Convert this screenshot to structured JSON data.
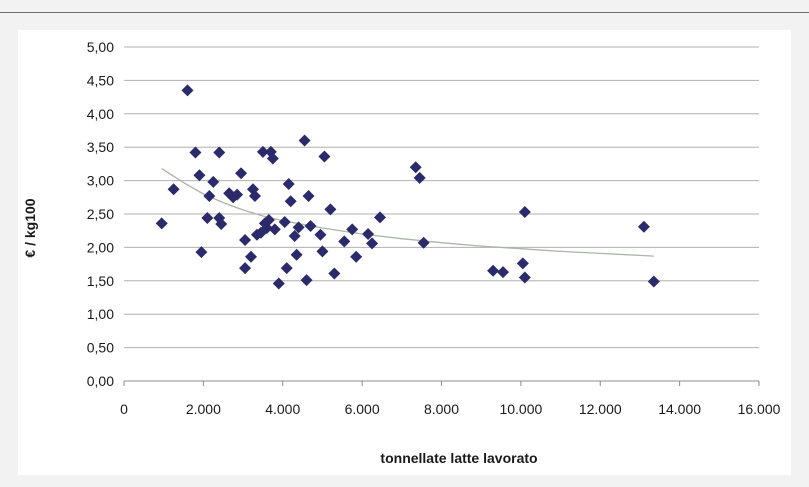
{
  "chart_data": {
    "type": "scatter",
    "title": "",
    "xlabel": "tonnellate latte lavorato",
    "ylabel": "€ / kg100",
    "xlim": [
      0,
      16000
    ],
    "ylim": [
      0,
      5
    ],
    "x_ticks": [
      0,
      2000,
      4000,
      6000,
      8000,
      10000,
      12000,
      14000,
      16000
    ],
    "x_tick_labels": [
      "0",
      "2.000",
      "4.000",
      "6.000",
      "8.000",
      "10.000",
      "12.000",
      "14.000",
      "16.000"
    ],
    "y_ticks": [
      0,
      0.5,
      1,
      1.5,
      2,
      2.5,
      3,
      3.5,
      4,
      4.5,
      5
    ],
    "y_tick_labels": [
      "0,00",
      "0,50",
      "1,00",
      "1,50",
      "2,00",
      "2,50",
      "3,00",
      "3,50",
      "4,00",
      "4,50",
      "5,00"
    ],
    "grid": "horizontal",
    "legend": "none",
    "marker": "diamond",
    "marker_color": "#2b2b6b",
    "trendline_color": "#a8b5a8",
    "points": [
      {
        "x": 950,
        "y": 2.36
      },
      {
        "x": 1250,
        "y": 2.87
      },
      {
        "x": 1600,
        "y": 4.35
      },
      {
        "x": 1800,
        "y": 3.42
      },
      {
        "x": 1900,
        "y": 3.08
      },
      {
        "x": 1950,
        "y": 1.93
      },
      {
        "x": 2100,
        "y": 2.44
      },
      {
        "x": 2150,
        "y": 2.77
      },
      {
        "x": 2250,
        "y": 2.98
      },
      {
        "x": 2400,
        "y": 2.44
      },
      {
        "x": 2400,
        "y": 3.42
      },
      {
        "x": 2450,
        "y": 2.35
      },
      {
        "x": 2650,
        "y": 2.81
      },
      {
        "x": 2750,
        "y": 2.75
      },
      {
        "x": 2850,
        "y": 2.79
      },
      {
        "x": 2950,
        "y": 3.11
      },
      {
        "x": 3050,
        "y": 2.11
      },
      {
        "x": 3050,
        "y": 1.69
      },
      {
        "x": 3200,
        "y": 1.86
      },
      {
        "x": 3250,
        "y": 2.87
      },
      {
        "x": 3300,
        "y": 2.77
      },
      {
        "x": 3350,
        "y": 2.19
      },
      {
        "x": 3450,
        "y": 2.22
      },
      {
        "x": 3500,
        "y": 3.43
      },
      {
        "x": 3550,
        "y": 2.36
      },
      {
        "x": 3600,
        "y": 2.29
      },
      {
        "x": 3650,
        "y": 2.41
      },
      {
        "x": 3700,
        "y": 3.43
      },
      {
        "x": 3750,
        "y": 3.33
      },
      {
        "x": 3800,
        "y": 2.27
      },
      {
        "x": 3900,
        "y": 1.46
      },
      {
        "x": 4050,
        "y": 2.38
      },
      {
        "x": 4100,
        "y": 1.69
      },
      {
        "x": 4150,
        "y": 2.95
      },
      {
        "x": 4200,
        "y": 2.69
      },
      {
        "x": 4300,
        "y": 2.17
      },
      {
        "x": 4350,
        "y": 1.89
      },
      {
        "x": 4400,
        "y": 2.3
      },
      {
        "x": 4550,
        "y": 3.6
      },
      {
        "x": 4600,
        "y": 1.51
      },
      {
        "x": 4650,
        "y": 2.77
      },
      {
        "x": 4700,
        "y": 2.32
      },
      {
        "x": 4950,
        "y": 2.19
      },
      {
        "x": 5000,
        "y": 1.94
      },
      {
        "x": 5050,
        "y": 3.36
      },
      {
        "x": 5200,
        "y": 2.57
      },
      {
        "x": 5300,
        "y": 1.61
      },
      {
        "x": 5550,
        "y": 2.09
      },
      {
        "x": 5750,
        "y": 2.27
      },
      {
        "x": 5850,
        "y": 1.86
      },
      {
        "x": 6150,
        "y": 2.2
      },
      {
        "x": 6250,
        "y": 2.06
      },
      {
        "x": 6450,
        "y": 2.45
      },
      {
        "x": 7350,
        "y": 3.2
      },
      {
        "x": 7450,
        "y": 3.04
      },
      {
        "x": 7550,
        "y": 2.07
      },
      {
        "x": 9300,
        "y": 1.65
      },
      {
        "x": 9550,
        "y": 1.63
      },
      {
        "x": 10050,
        "y": 1.76
      },
      {
        "x": 10100,
        "y": 2.53
      },
      {
        "x": 10100,
        "y": 1.55
      },
      {
        "x": 13100,
        "y": 2.31
      },
      {
        "x": 13350,
        "y": 1.49
      }
    ],
    "trendline": [
      {
        "x": 950,
        "y": 3.18
      },
      {
        "x": 1500,
        "y": 2.97
      },
      {
        "x": 2000,
        "y": 2.8
      },
      {
        "x": 2500,
        "y": 2.67
      },
      {
        "x": 3000,
        "y": 2.56
      },
      {
        "x": 3500,
        "y": 2.47
      },
      {
        "x": 4000,
        "y": 2.4
      },
      {
        "x": 5000,
        "y": 2.29
      },
      {
        "x": 6000,
        "y": 2.2
      },
      {
        "x": 7000,
        "y": 2.13
      },
      {
        "x": 8000,
        "y": 2.07
      },
      {
        "x": 9000,
        "y": 2.02
      },
      {
        "x": 10000,
        "y": 1.98
      },
      {
        "x": 11000,
        "y": 1.94
      },
      {
        "x": 12000,
        "y": 1.91
      },
      {
        "x": 13350,
        "y": 1.87
      }
    ]
  }
}
